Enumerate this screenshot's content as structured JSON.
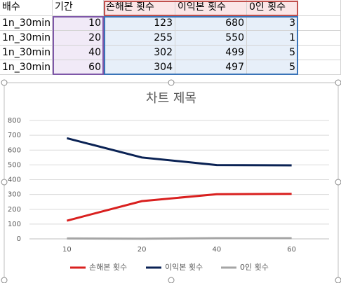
{
  "table": {
    "columns": [
      "배수",
      "기간",
      "손해본 횟수",
      "이익본 횟수",
      "0인 횟수"
    ],
    "rows": [
      [
        "1n_30min",
        10,
        123,
        680,
        3
      ],
      [
        "1n_30min",
        20,
        255,
        550,
        1
      ],
      [
        "1n_30min",
        40,
        302,
        499,
        5
      ],
      [
        "1n_30min",
        60,
        304,
        497,
        5
      ]
    ]
  },
  "chart_data": {
    "type": "line",
    "title": "차트 제목",
    "categories": [
      "10",
      "20",
      "40",
      "60"
    ],
    "series": [
      {
        "name": "손해본 횟수",
        "color": "#d9201f",
        "values": [
          123,
          255,
          302,
          304
        ]
      },
      {
        "name": "이익본 횟수",
        "color": "#0a2254",
        "values": [
          680,
          550,
          499,
          497
        ]
      },
      {
        "name": "0인 횟수",
        "color": "#a5a5a5",
        "values": [
          3,
          1,
          5,
          5
        ]
      }
    ],
    "ylim": [
      0,
      800
    ],
    "yticks": [
      0,
      100,
      200,
      300,
      400,
      500,
      600,
      700,
      800
    ],
    "grid": true,
    "legend": "bottom"
  }
}
